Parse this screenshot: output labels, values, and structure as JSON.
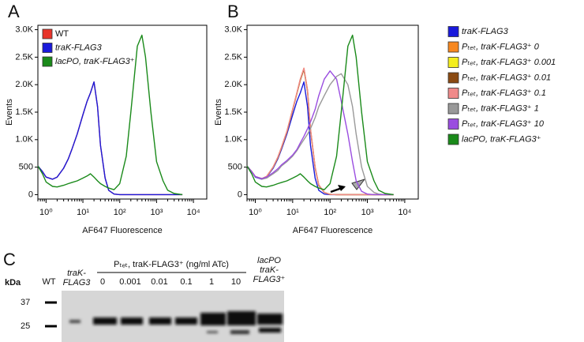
{
  "chart_data": [
    {
      "type": "line",
      "panel": "A",
      "ylabel": "Events",
      "xlabel": "AF647 Fluorescence",
      "xscale": "log",
      "legend": "upper left",
      "xlim": [
        0.6,
        23000
      ],
      "ylim": [
        -80,
        3080
      ],
      "xticks": [
        {
          "value": 1,
          "label": "10⁰"
        },
        {
          "value": 10,
          "label": "10¹"
        },
        {
          "value": 100,
          "label": "10²"
        },
        {
          "value": 1000,
          "label": "10³"
        },
        {
          "value": 10000,
          "label": "10⁴"
        }
      ],
      "yticks": [
        0,
        500,
        {
          "value": 1000,
          "label": "1.0K"
        },
        {
          "value": 1500,
          "label": "1.5K"
        },
        {
          "value": 2000,
          "label": "2.0K"
        },
        {
          "value": 2500,
          "label": "2.5K"
        },
        {
          "value": 3000,
          "label": "3.0K"
        }
      ],
      "x": [
        0.6,
        0.8,
        1,
        1.5,
        2,
        3,
        4,
        5,
        7,
        10,
        13,
        16,
        20,
        25,
        30,
        40,
        50,
        70,
        100,
        150,
        200,
        300,
        400,
        500,
        700,
        1000,
        1500,
        2000,
        3000,
        5000
      ],
      "series": [
        {
          "name": "WT",
          "color": "#e8342a",
          "values": [
            520,
            420,
            320,
            280,
            320,
            480,
            650,
            820,
            1100,
            1450,
            1700,
            1850,
            2050,
            1600,
            900,
            300,
            80,
            10,
            0,
            0,
            0,
            0,
            0,
            0,
            0,
            0,
            0,
            0,
            0,
            0
          ]
        },
        {
          "name": "traK-FLAG3",
          "color": "#1a1adb",
          "values": [
            520,
            420,
            320,
            280,
            320,
            480,
            650,
            820,
            1100,
            1450,
            1700,
            1850,
            2050,
            1600,
            900,
            300,
            80,
            10,
            0,
            0,
            0,
            0,
            0,
            0,
            0,
            0,
            0,
            0,
            0,
            0
          ]
        },
        {
          "name": "lacPO, traK-FLAG3⁺",
          "color": "#1a8a1a",
          "values": [
            520,
            380,
            230,
            150,
            140,
            170,
            200,
            220,
            250,
            300,
            340,
            380,
            320,
            250,
            200,
            150,
            120,
            90,
            200,
            700,
            1500,
            2700,
            2900,
            2500,
            1500,
            600,
            250,
            80,
            20,
            0
          ]
        }
      ]
    },
    {
      "type": "line",
      "panel": "B",
      "ylabel": "Events",
      "xlabel": "AF647 Fluorescence",
      "xscale": "log",
      "legend": "right",
      "xlim": [
        0.6,
        23000
      ],
      "ylim": [
        -80,
        3080
      ],
      "xticks": [
        {
          "value": 1,
          "label": "10⁰"
        },
        {
          "value": 10,
          "label": "10¹"
        },
        {
          "value": 100,
          "label": "10²"
        },
        {
          "value": 1000,
          "label": "10³"
        },
        {
          "value": 10000,
          "label": "10⁴"
        }
      ],
      "yticks": [
        0,
        500,
        {
          "value": 1000,
          "label": "1.0K"
        },
        {
          "value": 1500,
          "label": "1.5K"
        },
        {
          "value": 2000,
          "label": "2.0K"
        },
        {
          "value": 2500,
          "label": "2.5K"
        },
        {
          "value": 3000,
          "label": "3.0K"
        }
      ],
      "x": [
        0.6,
        0.8,
        1,
        1.5,
        2,
        3,
        4,
        5,
        7,
        10,
        13,
        16,
        20,
        25,
        30,
        40,
        50,
        70,
        100,
        150,
        200,
        300,
        400,
        500,
        700,
        1000,
        1500,
        2000,
        3000,
        5000
      ],
      "series": [
        {
          "name": "traK-FLAG3",
          "color": "#1a1adb",
          "values": [
            520,
            420,
            320,
            280,
            320,
            480,
            650,
            820,
            1100,
            1450,
            1700,
            1850,
            2050,
            1600,
            900,
            300,
            80,
            10,
            0,
            0,
            0,
            0,
            0,
            0,
            0,
            0,
            0,
            0,
            0,
            0
          ]
        },
        {
          "name": "Pₜₑₜ, traK-FLAG3⁺ 0",
          "color": "#f7871f",
          "values": [
            520,
            420,
            330,
            290,
            330,
            500,
            680,
            860,
            1150,
            1550,
            1850,
            2100,
            2300,
            1900,
            1200,
            500,
            180,
            40,
            5,
            0,
            0,
            0,
            0,
            0,
            0,
            0,
            0,
            0,
            0,
            0
          ]
        },
        {
          "name": "Pₜₑₜ, traK-FLAG3⁺ 0.001",
          "color": "#f4ee1e",
          "values": [
            520,
            420,
            330,
            290,
            330,
            500,
            670,
            850,
            1140,
            1540,
            1840,
            2080,
            2280,
            1880,
            1180,
            490,
            170,
            40,
            5,
            0,
            0,
            0,
            0,
            0,
            0,
            0,
            0,
            0,
            0,
            0
          ]
        },
        {
          "name": "Pₜₑₜ, traK-FLAG3⁺ 0.01",
          "color": "#8a4a12",
          "values": [
            520,
            420,
            330,
            290,
            330,
            500,
            670,
            850,
            1140,
            1540,
            1840,
            2080,
            2280,
            1880,
            1180,
            490,
            170,
            40,
            5,
            0,
            0,
            0,
            0,
            0,
            0,
            0,
            0,
            0,
            0,
            0
          ]
        },
        {
          "name": "Pₜₑₜ, traK-FLAG3⁺ 0.1",
          "color": "#f08a8a",
          "values": [
            520,
            420,
            330,
            290,
            330,
            500,
            680,
            860,
            1150,
            1550,
            1850,
            2100,
            2300,
            1900,
            1200,
            500,
            180,
            40,
            5,
            0,
            0,
            0,
            0,
            0,
            0,
            0,
            0,
            0,
            0,
            0
          ]
        },
        {
          "name": "Pₜₑₜ, traK-FLAG3⁺ 1",
          "color": "#999999",
          "values": [
            520,
            420,
            330,
            280,
            300,
            380,
            440,
            520,
            600,
            700,
            800,
            900,
            1000,
            1100,
            1200,
            1400,
            1600,
            1800,
            2000,
            2150,
            2200,
            2000,
            1600,
            1100,
            500,
            150,
            40,
            10,
            0,
            0
          ]
        },
        {
          "name": "Pₜₑₜ, traK-FLAG3⁺ 10",
          "color": "#9a4de0",
          "values": [
            520,
            420,
            330,
            290,
            320,
            400,
            470,
            540,
            620,
            720,
            820,
            940,
            1060,
            1200,
            1320,
            1550,
            1800,
            2100,
            2250,
            2100,
            1700,
            1100,
            600,
            250,
            60,
            10,
            0,
            0,
            0,
            0
          ]
        },
        {
          "name": "lacPO, traK-FLAG3⁺",
          "color": "#1a8a1a",
          "values": [
            520,
            380,
            230,
            150,
            140,
            170,
            200,
            220,
            250,
            300,
            340,
            380,
            320,
            250,
            200,
            150,
            120,
            90,
            200,
            700,
            1500,
            2700,
            2900,
            2500,
            1500,
            600,
            250,
            80,
            20,
            0
          ]
        }
      ]
    }
  ],
  "blot": {
    "panel": "C",
    "unit": "kDa",
    "markers": [
      "37",
      "25"
    ],
    "group_label": "Pₜₑₜ, traK-FLAG3⁺ (ng/ml ATc)",
    "lanes": [
      "WT",
      "traK-FLAG3",
      "0",
      "0.001",
      "0.01",
      "0.1",
      "1",
      "10",
      "lacPO traK-FLAG3⁺"
    ]
  }
}
